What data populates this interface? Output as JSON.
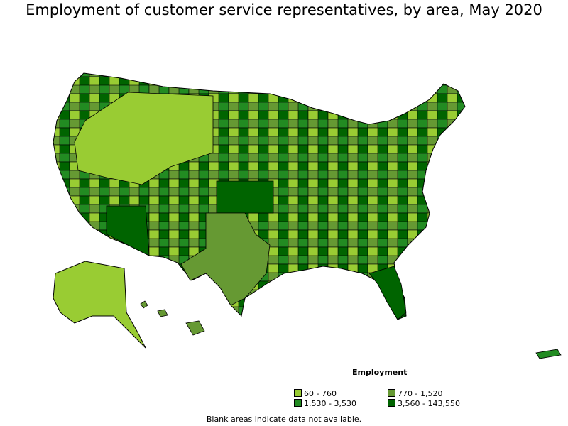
{
  "map": {
    "title": "Employment of customer service representatives, by area, May 2020",
    "legend": {
      "title": "Employment",
      "items": [
        {
          "label": "60 - 760",
          "color": "#99cc33"
        },
        {
          "label": "770 - 1,520",
          "color": "#669933"
        },
        {
          "label": "1,530 - 3,530",
          "color": "#228b22"
        },
        {
          "label": "3,560 - 143,550",
          "color": "#006400"
        }
      ]
    },
    "footnote": "Blank areas indicate data not available."
  }
}
